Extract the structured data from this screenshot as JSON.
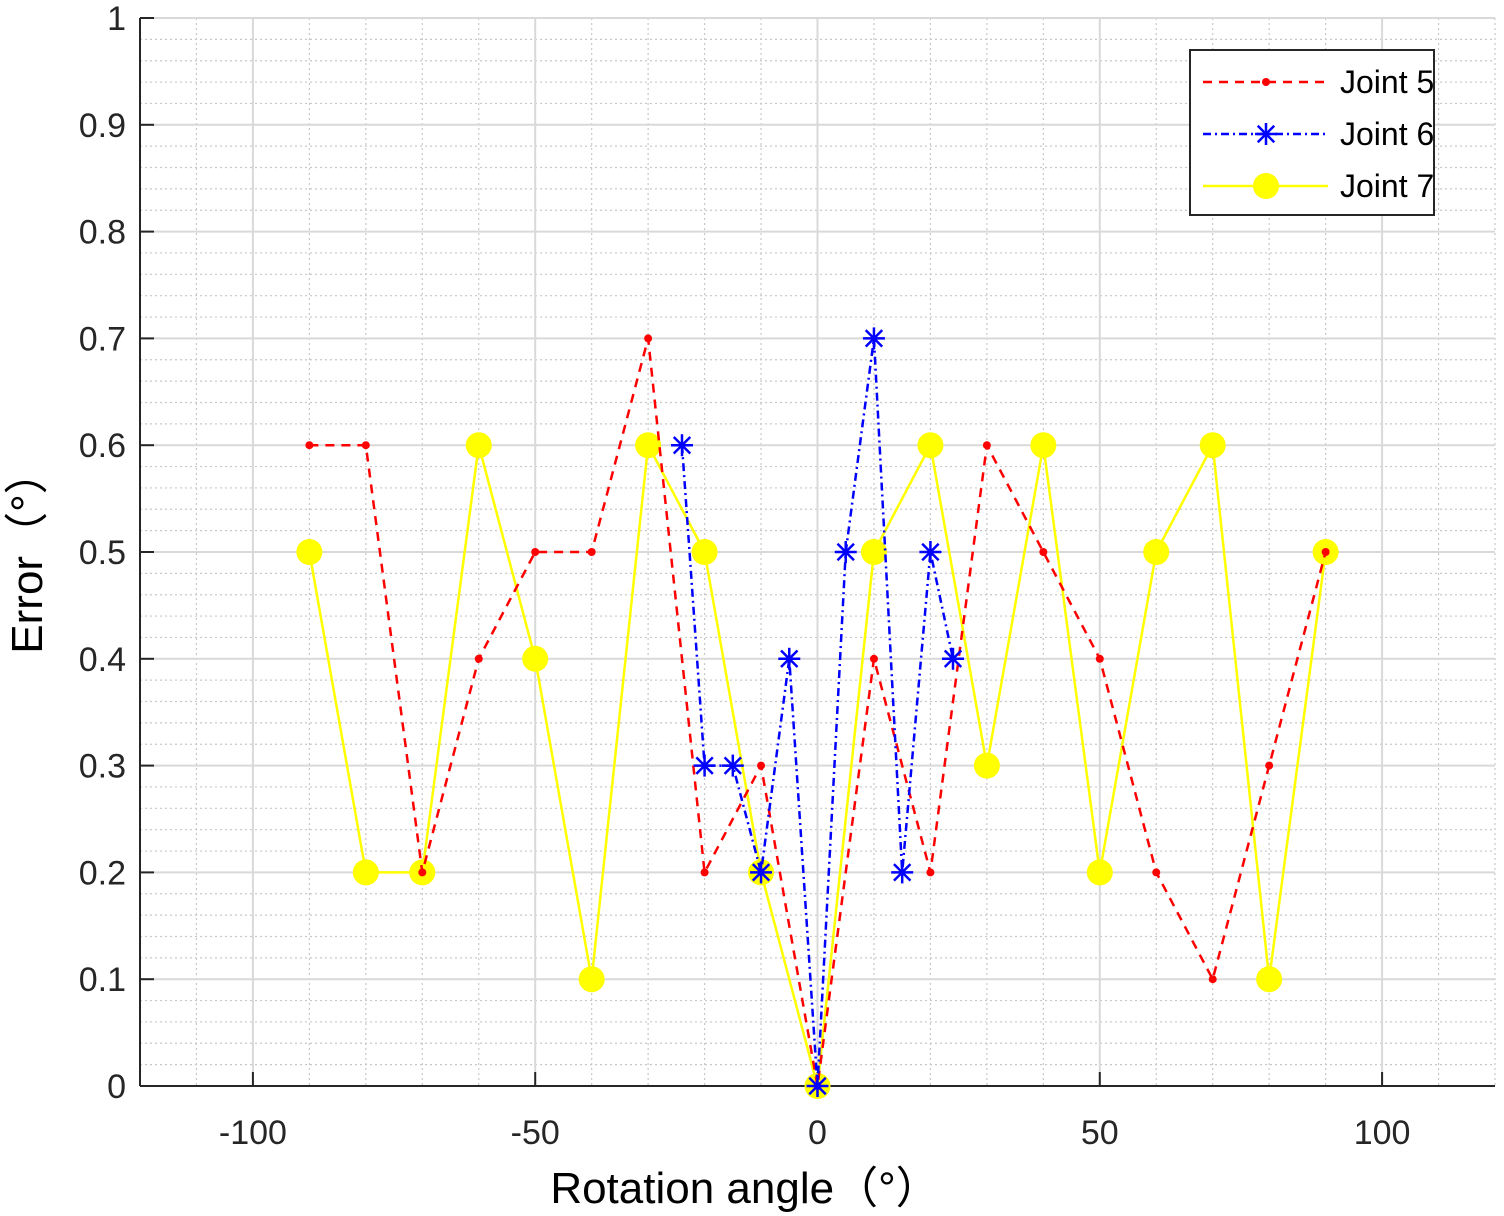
{
  "chart_data": {
    "type": "line",
    "title": "",
    "xlabel": "Rotation angle（°）",
    "ylabel": "Error（°）",
    "xlim": [
      -120,
      120
    ],
    "ylim": [
      0,
      1
    ],
    "xticks": [
      -100,
      -50,
      0,
      50,
      100
    ],
    "xtick_labels": [
      "-100",
      "-50",
      "0",
      "50",
      "100"
    ],
    "yticks": [
      0,
      0.1,
      0.2,
      0.3,
      0.4,
      0.5,
      0.6,
      0.7,
      0.8,
      0.9,
      1
    ],
    "ytick_labels": [
      "0",
      "0.1",
      "0.2",
      "0.3",
      "0.4",
      "0.5",
      "0.6",
      "0.7",
      "0.8",
      "0.9",
      "1"
    ],
    "grid": true,
    "minor_grid": true,
    "legend_position": "top-right",
    "series": [
      {
        "name": "Joint 5",
        "color": "#ff0000",
        "line_style": "dashed",
        "marker": "dot",
        "x": [
          -90,
          -80,
          -70,
          -60,
          -50,
          -40,
          -30,
          -20,
          -10,
          0,
          10,
          20,
          30,
          40,
          50,
          60,
          70,
          80,
          90
        ],
        "y": [
          0.6,
          0.6,
          0.2,
          0.4,
          0.5,
          0.5,
          0.7,
          0.2,
          0.3,
          0,
          0.4,
          0.2,
          0.6,
          0.5,
          0.4,
          0.2,
          0.1,
          0.3,
          0.5
        ]
      },
      {
        "name": "Joint 6",
        "color": "#0000ff",
        "line_style": "dashdot",
        "marker": "asterisk",
        "x": [
          -24,
          -20,
          -15,
          -10,
          -5,
          0,
          5,
          10,
          15,
          20,
          24
        ],
        "y": [
          0.6,
          0.3,
          0.3,
          0.2,
          0.4,
          0,
          0.5,
          0.7,
          0.2,
          0.5,
          0.4
        ]
      },
      {
        "name": "Joint 7",
        "color": "#ffff00",
        "line_style": "solid",
        "marker": "circle",
        "x": [
          -90,
          -80,
          -70,
          -60,
          -50,
          -40,
          -30,
          -20,
          -10,
          0,
          10,
          20,
          30,
          40,
          50,
          60,
          70,
          80,
          90
        ],
        "y": [
          0.5,
          0.2,
          0.2,
          0.6,
          0.4,
          0.1,
          0.6,
          0.5,
          0.2,
          0,
          0.5,
          0.6,
          0.3,
          0.6,
          0.2,
          0.5,
          0.6,
          0.1,
          0.5
        ]
      }
    ]
  }
}
